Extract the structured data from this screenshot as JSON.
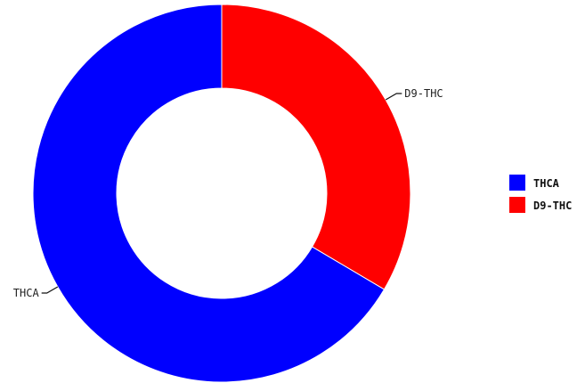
{
  "chart_data": {
    "type": "pie",
    "donut": true,
    "title": "",
    "slices": [
      {
        "label": "D9-THC",
        "value": 33.5,
        "color": "#ff0000"
      },
      {
        "label": "THCA",
        "value": 66.5,
        "color": "#0000ff"
      }
    ],
    "legend": {
      "position": "right",
      "entries": [
        {
          "label": "THCA",
          "color": "#0000ff"
        },
        {
          "label": "D9-THC",
          "color": "#ff0000"
        }
      ]
    }
  }
}
